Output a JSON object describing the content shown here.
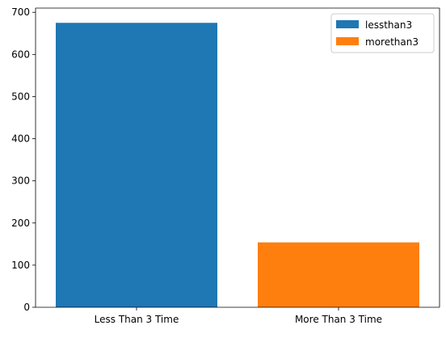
{
  "chart_data": {
    "type": "bar",
    "categories": [
      "Less Than 3 Time",
      "More Than 3 Time"
    ],
    "series": [
      {
        "name": "lessthan3",
        "category": "Less Than 3 Time",
        "value": 675,
        "color": "#1f77b4"
      },
      {
        "name": "morethan3",
        "category": "More Than 3 Time",
        "value": 154,
        "color": "#ff7f0e"
      }
    ],
    "ylim": [
      0,
      710
    ],
    "yticks": [
      0,
      100,
      200,
      300,
      400,
      500,
      600,
      700
    ],
    "ytick_labels": [
      "0",
      "100",
      "200",
      "300",
      "400",
      "500",
      "600",
      "700"
    ],
    "legend": {
      "position": "top-right",
      "entries": [
        "lessthan3",
        "morethan3"
      ]
    },
    "grid": false
  }
}
